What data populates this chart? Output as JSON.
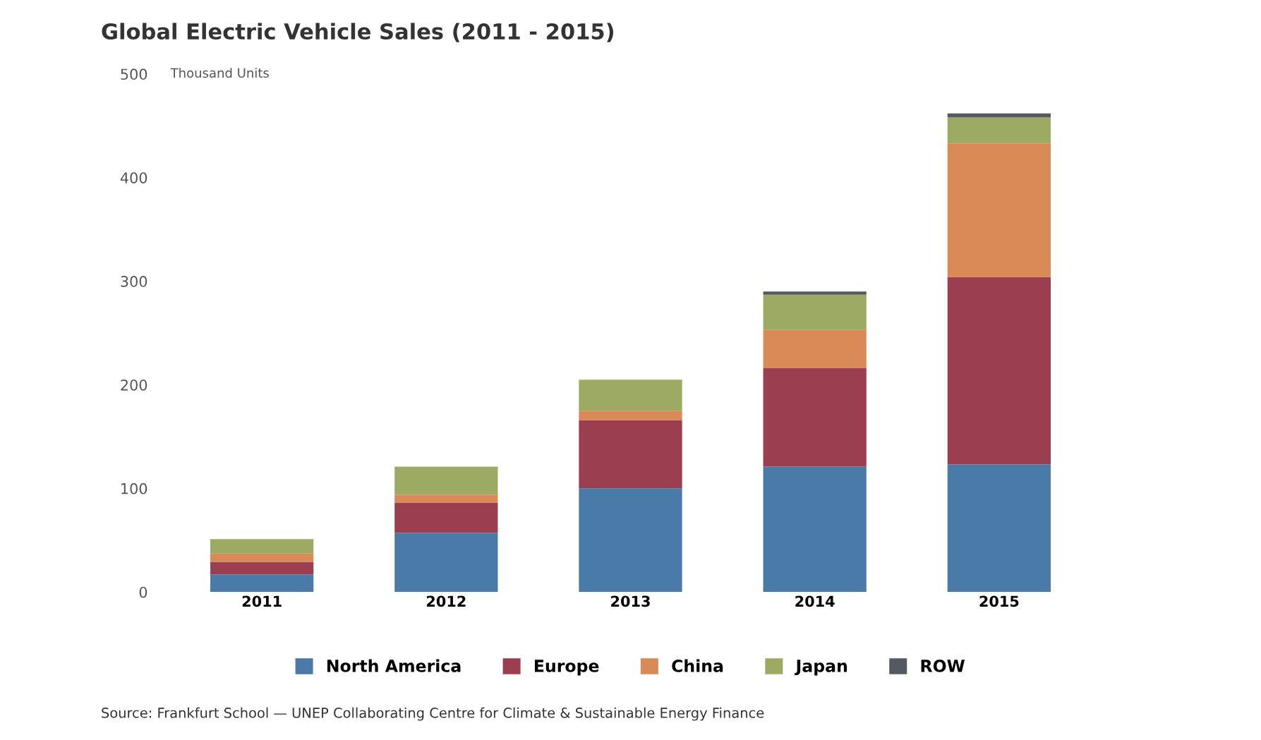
{
  "chart_data": {
    "type": "bar",
    "title": "Global Electric Vehicle Sales (2011 - 2015)",
    "ylabel": "Thousand Units",
    "categories": [
      "2011",
      "2012",
      "2013",
      "2014",
      "2015"
    ],
    "stacked": true,
    "series": [
      {
        "name": "North America",
        "color": "#4a7aa8",
        "values": [
          17,
          57,
          100,
          121,
          123
        ]
      },
      {
        "name": "Europe",
        "color": "#9b3f50",
        "values": [
          12,
          29,
          66,
          95,
          181
        ]
      },
      {
        "name": "China",
        "color": "#d98a56",
        "values": [
          8,
          8,
          9,
          37,
          129
        ]
      },
      {
        "name": "Japan",
        "color": "#9daa63",
        "values": [
          14,
          27,
          30,
          34,
          25
        ]
      },
      {
        "name": "ROW",
        "color": "#555a60",
        "values": [
          0,
          0,
          0,
          3,
          4
        ]
      }
    ],
    "ylim": [
      0,
      500
    ],
    "yticks": [
      0,
      100,
      200,
      300,
      400,
      500
    ],
    "grid": false,
    "legend": "bottom",
    "annotations": [
      "Source: Frankfurt School — UNEP Collaborating Centre for Climate & Sustainable Energy Finance"
    ]
  }
}
